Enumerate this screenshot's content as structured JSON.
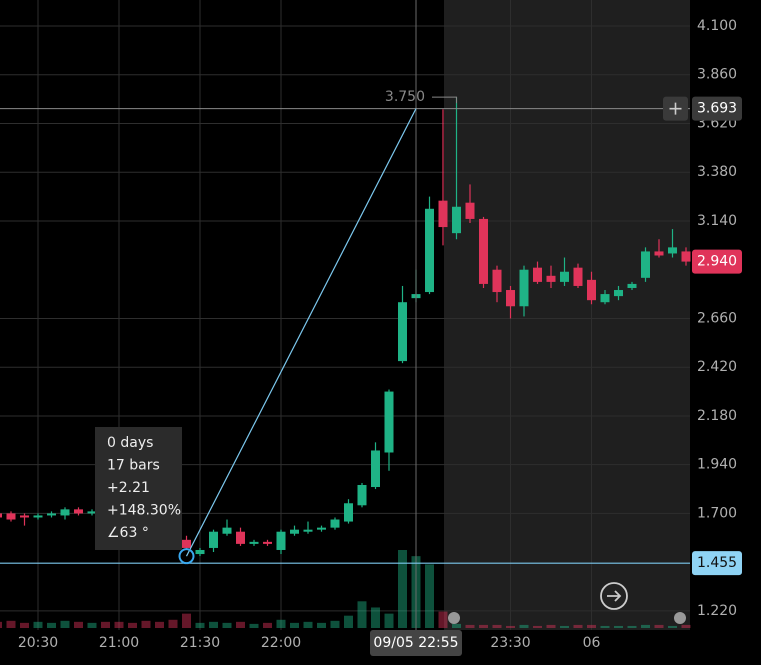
{
  "chart_data": {
    "type": "candlestick",
    "categories": [
      null,
      null,
      null,
      "20:30",
      null,
      null,
      null,
      null,
      null,
      "21:00",
      null,
      null,
      null,
      null,
      null,
      "21:30",
      null,
      null,
      null,
      null,
      null,
      "22:00",
      null,
      null,
      null,
      null,
      null,
      null,
      null,
      null,
      null,
      null,
      null,
      null,
      null,
      null,
      null,
      null,
      "23:30",
      null,
      null,
      null,
      null,
      null,
      "06",
      null,
      null,
      null,
      null,
      null,
      null,
      null
    ],
    "open": [
      1.7,
      1.7,
      1.69,
      1.68,
      1.69,
      1.69,
      1.72,
      1.7,
      1.71,
      1.7,
      1.69,
      1.68,
      1.66,
      1.62,
      1.57,
      1.5,
      1.53,
      1.6,
      1.61,
      1.55,
      1.56,
      1.52,
      1.6,
      1.61,
      1.62,
      1.63,
      1.66,
      1.74,
      1.83,
      2.0,
      2.45,
      2.76,
      2.79,
      3.24,
      3.08,
      3.23,
      3.15,
      2.9,
      2.8,
      2.72,
      2.91,
      2.87,
      2.84,
      2.91,
      2.85,
      2.74,
      2.77,
      2.81,
      2.86,
      2.99,
      2.98,
      2.99
    ],
    "high": [
      1.71,
      1.71,
      1.7,
      1.7,
      1.71,
      1.73,
      1.73,
      1.72,
      1.72,
      1.71,
      1.7,
      1.69,
      1.67,
      1.63,
      1.59,
      1.53,
      1.62,
      1.67,
      1.63,
      1.57,
      1.57,
      1.62,
      1.64,
      1.66,
      1.64,
      1.68,
      1.77,
      1.85,
      2.05,
      2.31,
      2.82,
      2.9,
      3.26,
      3.69,
      3.75,
      3.32,
      3.16,
      2.92,
      2.82,
      2.92,
      2.94,
      2.92,
      2.96,
      2.93,
      2.89,
      2.8,
      2.82,
      2.84,
      3.01,
      3.05,
      3.1,
      3.01
    ],
    "low": [
      1.68,
      1.66,
      1.64,
      1.67,
      1.68,
      1.67,
      1.69,
      1.69,
      1.69,
      1.68,
      1.67,
      1.65,
      1.61,
      1.57,
      1.52,
      1.49,
      1.51,
      1.59,
      1.54,
      1.54,
      1.54,
      1.5,
      1.59,
      1.6,
      1.61,
      1.62,
      1.65,
      1.73,
      1.82,
      1.91,
      2.44,
      2.74,
      2.78,
      3.02,
      3.05,
      3.13,
      2.81,
      2.74,
      2.66,
      2.67,
      2.83,
      2.81,
      2.82,
      2.81,
      2.73,
      2.73,
      2.75,
      2.8,
      2.84,
      2.96,
      2.96,
      2.92
    ],
    "close": [
      1.68,
      1.67,
      1.68,
      1.69,
      1.7,
      1.72,
      1.7,
      1.71,
      1.7,
      1.69,
      1.68,
      1.66,
      1.62,
      1.58,
      1.53,
      1.52,
      1.61,
      1.63,
      1.55,
      1.56,
      1.55,
      1.61,
      1.62,
      1.62,
      1.63,
      1.67,
      1.75,
      1.84,
      2.01,
      2.3,
      2.74,
      2.78,
      3.2,
      3.11,
      3.21,
      3.15,
      2.83,
      2.79,
      2.72,
      2.9,
      2.84,
      2.84,
      2.89,
      2.82,
      2.75,
      2.78,
      2.8,
      2.83,
      2.99,
      2.97,
      3.01,
      2.94
    ],
    "volume": [
      6,
      7,
      5,
      6,
      5,
      7,
      6,
      5,
      6,
      6,
      5,
      7,
      6,
      8,
      14,
      5,
      6,
      5,
      6,
      4,
      5,
      8,
      5,
      6,
      5,
      7,
      12,
      26,
      20,
      14,
      76,
      70,
      62,
      16,
      4,
      3,
      3,
      3,
      2,
      3,
      2,
      3,
      2,
      3,
      3,
      2,
      2,
      2,
      3,
      3,
      2,
      3
    ],
    "up_color": "#1fb386",
    "down_color": "#e0345a",
    "ylim": [
      1.126,
      4.228
    ],
    "yticks": [
      {
        "value": 4.1,
        "label": "4.100"
      },
      {
        "value": 3.86,
        "label": "3.860"
      },
      {
        "value": 3.62,
        "label": "3.620"
      },
      {
        "value": 3.38,
        "label": "3.380"
      },
      {
        "value": 3.14,
        "label": "3.140"
      },
      {
        "value": 2.66,
        "label": "2.660"
      },
      {
        "value": 2.42,
        "label": "2.420"
      },
      {
        "value": 2.18,
        "label": "2.180"
      },
      {
        "value": 1.94,
        "label": "1.940"
      },
      {
        "value": 1.7,
        "label": "1.700"
      },
      {
        "value": 1.22,
        "label": "1.220"
      }
    ],
    "grid": true,
    "high_marker": {
      "value": 3.75,
      "label": "3.750"
    },
    "crosshair": {
      "price": 3.693,
      "time": "09/05 22:55"
    },
    "last_price": {
      "value": 2.94,
      "label": "2.940"
    },
    "measure_price": 1.455,
    "measure_info": [
      "0 days",
      "17 bars",
      "+2.21",
      "+148.30%",
      "∠63 °"
    ]
  }
}
